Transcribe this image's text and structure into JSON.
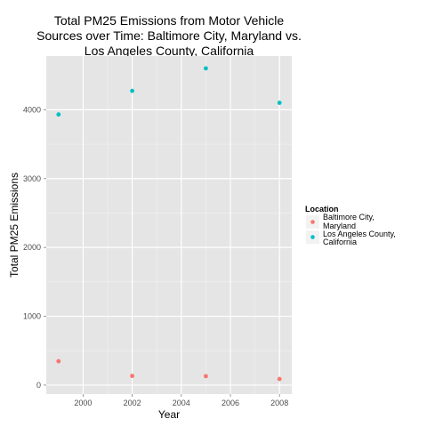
{
  "chart_data": {
    "type": "scatter",
    "title_lines": [
      "Total PM25 Emissions from Motor Vehicle",
      "Sources over Time: Baltimore City, Maryland vs.",
      "Los Angeles County, California"
    ],
    "xlabel": "Year",
    "ylabel": "Total PM25 Emissions",
    "xlim": [
      1998.5,
      2008.5
    ],
    "ylim": [
      -130,
      4780
    ],
    "x_ticks": [
      2000,
      2002,
      2004,
      2006,
      2008
    ],
    "y_ticks": [
      0,
      1000,
      2000,
      3000,
      4000
    ],
    "x_tick_labels": [
      "2000",
      "2002",
      "2004",
      "2006",
      "2008"
    ],
    "y_tick_labels": [
      "0",
      "1000",
      "2000",
      "3000",
      "4000"
    ],
    "grid": true,
    "legend": {
      "title": "Location",
      "placement": "right"
    },
    "series": [
      {
        "name_lines": [
          "Baltimore City,",
          "Maryland"
        ],
        "color": "#f8766d",
        "x": [
          1999,
          2002,
          2005,
          2008
        ],
        "y": [
          347,
          134,
          130,
          89
        ]
      },
      {
        "name_lines": [
          "Los Angeles County,",
          "California"
        ],
        "color": "#00bfc4",
        "x": [
          1999,
          2002,
          2005,
          2008
        ],
        "y": [
          3931,
          4274,
          4601,
          4101
        ]
      }
    ]
  }
}
